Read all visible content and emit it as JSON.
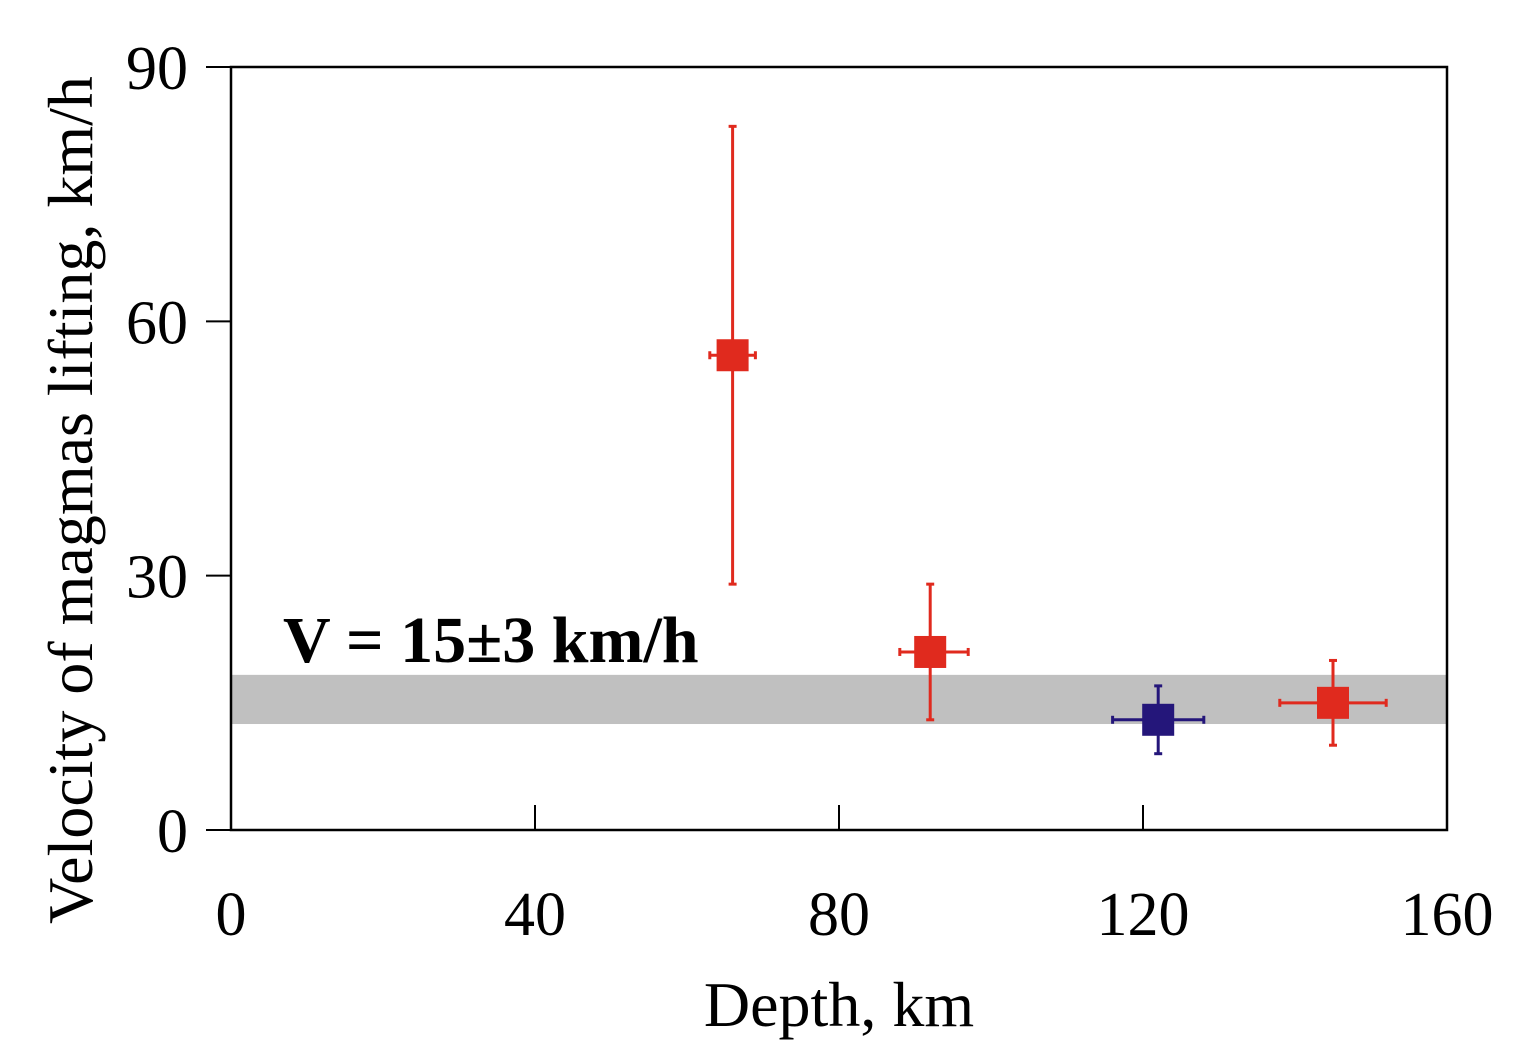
{
  "chart_data": {
    "type": "scatter",
    "title": "",
    "xlabel": "Depth, km",
    "ylabel": "Velocity of magmas lifting, km/h",
    "xlim": [
      0,
      160
    ],
    "ylim": [
      0,
      90
    ],
    "xticks": [
      "0",
      "40",
      "80",
      "120",
      "160"
    ],
    "yticks": [
      "0",
      "30",
      "60",
      "90"
    ],
    "grid": false,
    "band": {
      "label": "V = 15±3 km/h",
      "y_range": [
        12.5,
        18.3
      ],
      "color": "#c0c0c0"
    },
    "points": [
      {
        "x": 66,
        "y": 56,
        "x_err": [
          63,
          69
        ],
        "y_err": [
          29,
          83
        ],
        "color": "#e02a1e"
      },
      {
        "x": 92,
        "y": 21,
        "x_err": [
          88,
          97
        ],
        "y_err": [
          13,
          29
        ],
        "color": "#e02a1e"
      },
      {
        "x": 122,
        "y": 13,
        "x_err": [
          116,
          128
        ],
        "y_err": [
          9,
          17
        ],
        "color": "#24167a"
      },
      {
        "x": 145,
        "y": 15,
        "x_err": [
          138,
          152
        ],
        "y_err": [
          10,
          20
        ],
        "color": "#e02a1e"
      }
    ]
  }
}
